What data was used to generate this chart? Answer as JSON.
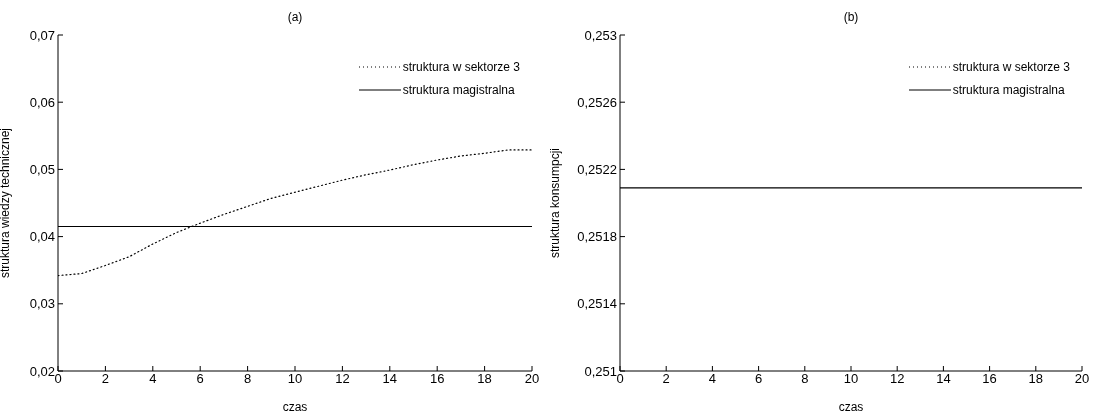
{
  "chart_data": [
    {
      "type": "line",
      "title": "(a)",
      "xlabel": "czas",
      "ylabel": "struktura wiedzy technicznej",
      "x": [
        0,
        1,
        2,
        3,
        4,
        5,
        6,
        7,
        8,
        9,
        10,
        11,
        12,
        13,
        14,
        15,
        16,
        17,
        18,
        19,
        20
      ],
      "xlim": [
        0,
        20
      ],
      "xticks": [
        0,
        2,
        4,
        6,
        8,
        10,
        12,
        14,
        16,
        18,
        20
      ],
      "ylim": [
        0.02,
        0.07
      ],
      "yticks": [
        {
          "value": 0.02,
          "label": "0,02"
        },
        {
          "value": 0.03,
          "label": "0,03"
        },
        {
          "value": 0.04,
          "label": "0,04"
        },
        {
          "value": 0.05,
          "label": "0,05"
        },
        {
          "value": 0.06,
          "label": "0,06"
        },
        {
          "value": 0.07,
          "label": "0,07"
        }
      ],
      "grid": false,
      "legend": "top right",
      "marker": "none",
      "series": [
        {
          "name": "struktura w sektorze 3",
          "color": "#000000",
          "line_style": "dotted",
          "values": [
            0.0342,
            0.0345,
            0.0357,
            0.037,
            0.0389,
            0.0406,
            0.042,
            0.0433,
            0.0445,
            0.0457,
            0.0466,
            0.0475,
            0.0484,
            0.0492,
            0.0499,
            0.0507,
            0.0514,
            0.052,
            0.0524,
            0.0529,
            0.0529
          ]
        },
        {
          "name": "struktura magistralna",
          "color": "#000000",
          "line_style": "solid",
          "values": [
            0.0415,
            0.0415,
            0.0415,
            0.0415,
            0.0415,
            0.0415,
            0.0415,
            0.0415,
            0.0415,
            0.0415,
            0.0415,
            0.0415,
            0.0415,
            0.0415,
            0.0415,
            0.0415,
            0.0415,
            0.0415,
            0.0415,
            0.0415,
            0.0415
          ]
        }
      ]
    },
    {
      "type": "line",
      "title": "(b)",
      "xlabel": "czas",
      "ylabel": "struktura konsumpcji",
      "x": [
        0,
        1,
        2,
        3,
        4,
        5,
        6,
        7,
        8,
        9,
        10,
        11,
        12,
        13,
        14,
        15,
        16,
        17,
        18,
        19,
        20
      ],
      "xlim": [
        0,
        20
      ],
      "xticks": [
        0,
        2,
        4,
        6,
        8,
        10,
        12,
        14,
        16,
        18,
        20
      ],
      "ylim": [
        0.251,
        0.253
      ],
      "yticks": [
        {
          "value": 0.251,
          "label": "0,251"
        },
        {
          "value": 0.2514,
          "label": "0,2514"
        },
        {
          "value": 0.2518,
          "label": "0,2518"
        },
        {
          "value": 0.2522,
          "label": "0,2522"
        },
        {
          "value": 0.2526,
          "label": "0,2526"
        },
        {
          "value": 0.253,
          "label": "0,253"
        }
      ],
      "grid": false,
      "legend": "top right",
      "marker": "none",
      "series": [
        {
          "name": "struktura w sektorze 3",
          "color": "#000000",
          "line_style": "dotted",
          "values": [
            null,
            null,
            null,
            null,
            null,
            null,
            null,
            null,
            null,
            null,
            null,
            null,
            null,
            null,
            null,
            null,
            null,
            null,
            null,
            null,
            null
          ]
        },
        {
          "name": "struktura magistralna",
          "color": "#000000",
          "line_style": "solid",
          "values": [
            0.25209,
            0.25209,
            0.25209,
            0.25209,
            0.25209,
            0.25209,
            0.25209,
            0.25209,
            0.25209,
            0.25209,
            0.25209,
            0.25209,
            0.25209,
            0.25209,
            0.25209,
            0.25209,
            0.25209,
            0.25209,
            0.25209,
            0.25209,
            0.25209
          ]
        }
      ]
    }
  ]
}
